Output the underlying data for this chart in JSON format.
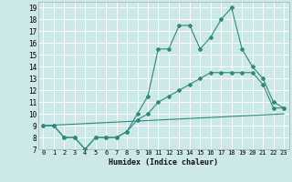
{
  "title": "",
  "xlabel": "Humidex (Indice chaleur)",
  "ylabel": "",
  "xlim": [
    -0.5,
    23.5
  ],
  "ylim": [
    7,
    19.5
  ],
  "yticks": [
    7,
    8,
    9,
    10,
    11,
    12,
    13,
    14,
    15,
    16,
    17,
    18,
    19
  ],
  "xticks": [
    0,
    1,
    2,
    3,
    4,
    5,
    6,
    7,
    8,
    9,
    10,
    11,
    12,
    13,
    14,
    15,
    16,
    17,
    18,
    19,
    20,
    21,
    22,
    23
  ],
  "bg_color": "#cce8e8",
  "grid_color": "#ffffff",
  "line_color": "#2e8b7a",
  "series1": {
    "x": [
      0,
      1,
      2,
      3,
      4,
      5,
      6,
      7,
      8,
      9,
      10,
      11,
      12,
      13,
      14,
      15,
      16,
      17,
      18,
      19,
      20,
      21,
      22,
      23
    ],
    "y": [
      9,
      9,
      8,
      8,
      7,
      8,
      8,
      8,
      8.5,
      10,
      11.5,
      15.5,
      15.5,
      17.5,
      17.5,
      15.5,
      16.5,
      18,
      19,
      15.5,
      14,
      13,
      11,
      10.5
    ]
  },
  "series2": {
    "x": [
      0,
      1,
      2,
      3,
      4,
      5,
      6,
      7,
      8,
      9,
      10,
      11,
      12,
      13,
      14,
      15,
      16,
      17,
      18,
      19,
      20,
      21,
      22,
      23
    ],
    "y": [
      9,
      9,
      8,
      8,
      7,
      8,
      8,
      8,
      8.5,
      9.5,
      10,
      11,
      11.5,
      12,
      12.5,
      13,
      13.5,
      13.5,
      13.5,
      13.5,
      13.5,
      12.5,
      10.5,
      10.5
    ]
  },
  "series3": {
    "x": [
      0,
      23
    ],
    "y": [
      9,
      10
    ]
  }
}
